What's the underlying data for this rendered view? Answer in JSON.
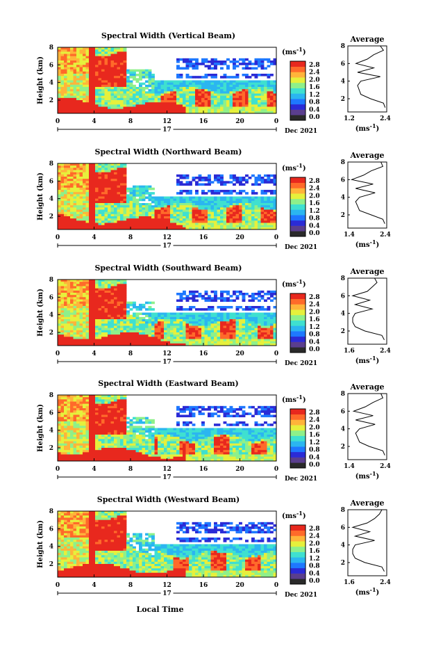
{
  "colors": {
    "scale": [
      "#2a2a2a",
      "#5a3e8e",
      "#2b2bd6",
      "#1e78ff",
      "#2bb6f0",
      "#3fe0d0",
      "#8ef08a",
      "#e6f03c",
      "#ffb43a",
      "#ff6a2a",
      "#e8281e"
    ],
    "cmap": [
      "#2b2bd6",
      "#1e78ff",
      "#2bb6f0",
      "#3fe0d0",
      "#8ef08a",
      "#e6f03c",
      "#ffb43a",
      "#ff6a2a",
      "#e8281e"
    ]
  },
  "colorbar": {
    "unit_label": "(ms",
    "unit_exp": "-1",
    "unit_close": ")",
    "ticks": [
      "2.8",
      "2.4",
      "2.0",
      "1.6",
      "1.2",
      "0.8",
      "0.4",
      "0.0"
    ]
  },
  "shared": {
    "ylabel": "Height (km)",
    "y_ticks": [
      "8",
      "6",
      "4",
      "2"
    ],
    "x_ticks": [
      "0",
      "4",
      "8",
      "12",
      "16",
      "20",
      "0"
    ],
    "day_label": "17",
    "month_label": "Dec 2021",
    "xlabel": "Local Time",
    "avg_title": "Average",
    "avg_unit": "(ms",
    "avg_unit_exp": "-1",
    "avg_unit_close": ")"
  },
  "chart_data": [
    {
      "type": "heatmap",
      "title": "Spectral Width (Vertical Beam)",
      "month_label": "Dec 2021",
      "x_range_hours": [
        0,
        24
      ],
      "y_range_km": [
        0.5,
        8
      ],
      "color_range": [
        0.0,
        2.8
      ],
      "average_profile": {
        "x_ticks": [
          "1.2",
          "2.4"
        ],
        "xlim": [
          1.2,
          2.4
        ],
        "height_km": [
          1.0,
          1.5,
          2.0,
          2.5,
          3.0,
          3.5,
          4.0,
          4.5,
          5.0,
          5.5,
          6.0,
          6.5,
          7.0,
          7.5,
          8.0
        ],
        "width": [
          2.35,
          2.3,
          1.9,
          1.6,
          1.55,
          1.5,
          1.6,
          2.2,
          1.5,
          2.0,
          1.45,
          1.8,
          2.0,
          2.3,
          2.2
        ]
      }
    },
    {
      "type": "heatmap",
      "title": "Spectral Width (Northward Beam)",
      "month_label": "Dec 2021",
      "x_range_hours": [
        0,
        24
      ],
      "y_range_km": [
        0.5,
        8
      ],
      "color_range": [
        0.0,
        2.8
      ],
      "average_profile": {
        "x_ticks": [
          "1.4",
          "2.4"
        ],
        "xlim": [
          1.4,
          2.4
        ],
        "height_km": [
          1.0,
          1.5,
          2.0,
          2.5,
          3.0,
          3.5,
          4.0,
          4.5,
          5.0,
          5.5,
          6.0,
          6.5,
          7.0,
          7.5,
          8.0
        ],
        "width": [
          2.35,
          2.3,
          2.0,
          1.7,
          1.65,
          1.6,
          1.7,
          2.1,
          1.6,
          2.05,
          1.5,
          1.8,
          2.0,
          2.3,
          2.25
        ]
      }
    },
    {
      "type": "heatmap",
      "title": "Spectral Width (Southward Beam)",
      "month_label": "Dec 2021",
      "x_range_hours": [
        0,
        24
      ],
      "y_range_km": [
        0.5,
        8
      ],
      "color_range": [
        0.0,
        2.8
      ],
      "average_profile": {
        "x_ticks": [
          "1.6",
          "2.4"
        ],
        "xlim": [
          1.6,
          2.4
        ],
        "height_km": [
          1.0,
          1.5,
          2.0,
          2.5,
          3.0,
          3.5,
          4.0,
          4.5,
          5.0,
          5.5,
          6.0,
          6.5,
          7.0,
          7.5,
          8.0
        ],
        "width": [
          2.35,
          2.3,
          1.95,
          1.75,
          1.7,
          1.7,
          1.75,
          2.1,
          1.75,
          2.05,
          1.7,
          2.0,
          2.1,
          2.2,
          2.15
        ]
      }
    },
    {
      "type": "heatmap",
      "title": "Spectral Width (Eastward Beam)",
      "month_label": "Dec 2021",
      "x_range_hours": [
        0,
        24
      ],
      "y_range_km": [
        0.5,
        8
      ],
      "color_range": [
        0.0,
        2.8
      ],
      "average_profile": {
        "x_ticks": [
          "1.4",
          "2.4"
        ],
        "xlim": [
          1.4,
          2.4
        ],
        "height_km": [
          1.0,
          1.5,
          2.0,
          2.5,
          3.0,
          3.5,
          4.0,
          4.5,
          5.0,
          5.5,
          6.0,
          6.5,
          7.0,
          7.5,
          8.0
        ],
        "width": [
          2.35,
          2.3,
          1.95,
          1.7,
          1.65,
          1.6,
          1.7,
          2.1,
          1.6,
          2.05,
          1.55,
          1.85,
          2.05,
          2.3,
          2.25
        ]
      }
    },
    {
      "type": "heatmap",
      "title": "Spectral Width (Westward Beam)",
      "month_label": "Dec 2021",
      "x_range_hours": [
        0,
        24
      ],
      "y_range_km": [
        0.5,
        8
      ],
      "color_range": [
        0.0,
        2.8
      ],
      "average_profile": {
        "x_ticks": [
          "1.6",
          "2.4"
        ],
        "xlim": [
          1.6,
          2.4
        ],
        "height_km": [
          1.0,
          1.5,
          2.0,
          2.5,
          3.0,
          3.5,
          4.0,
          4.5,
          5.0,
          5.5,
          6.0,
          6.5,
          7.0,
          7.5,
          8.0
        ],
        "width": [
          2.35,
          2.3,
          1.95,
          1.75,
          1.7,
          1.7,
          1.75,
          2.15,
          1.75,
          2.05,
          1.7,
          2.0,
          2.15,
          2.25,
          2.3
        ]
      }
    }
  ]
}
